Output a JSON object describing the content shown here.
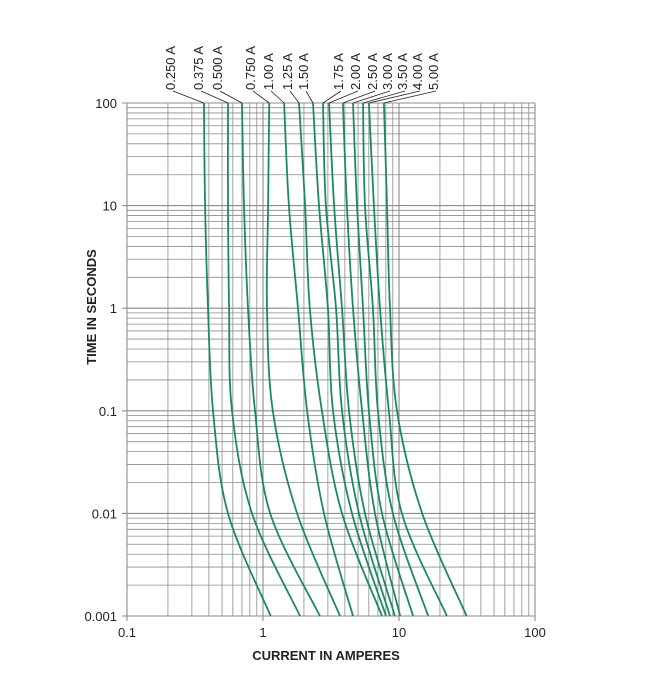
{
  "chart_data": {
    "type": "line",
    "title": "",
    "xlabel": "CURRENT IN AMPERES",
    "ylabel": "TIME IN SECONDS",
    "xscale": "log",
    "yscale": "log",
    "xlim": [
      0.1,
      100
    ],
    "ylim": [
      0.001,
      100
    ],
    "grid": true,
    "xticks": [
      {
        "v": 0.1,
        "label": "0.1"
      },
      {
        "v": 1,
        "label": "1"
      },
      {
        "v": 10,
        "label": "10"
      },
      {
        "v": 100,
        "label": "100"
      }
    ],
    "yticks": [
      {
        "v": 100,
        "label": "100"
      },
      {
        "v": 10,
        "label": "10"
      },
      {
        "v": 1,
        "label": "1"
      },
      {
        "v": 0.1,
        "label": "0.1"
      },
      {
        "v": 0.01,
        "label": "0.01"
      },
      {
        "v": 0.001,
        "label": "0.001"
      }
    ],
    "series_time_points": [
      100,
      10,
      1,
      0.1,
      0.01,
      0.001
    ],
    "series": [
      {
        "name": "0.250 A",
        "current": [
          0.368,
          0.375,
          0.394,
          0.429,
          0.553,
          1.14
        ]
      },
      {
        "name": "0.375 A",
        "current": [
          0.553,
          0.553,
          0.563,
          0.592,
          0.83,
          1.87
        ]
      },
      {
        "name": "0.500 A",
        "current": [
          0.701,
          0.725,
          0.776,
          0.873,
          1.13,
          2.62
        ]
      },
      {
        "name": "0.750 A",
        "current": [
          1.11,
          1.09,
          1.07,
          1.18,
          1.78,
          3.68
        ]
      },
      {
        "name": "1.00 A",
        "current": [
          1.43,
          1.55,
          1.81,
          2.11,
          2.81,
          4.59
        ]
      },
      {
        "name": "1.25 A",
        "current": [
          1.84,
          2.04,
          2.21,
          2.71,
          3.81,
          7.5
        ]
      },
      {
        "name": "1.50 A",
        "current": [
          2.33,
          2.58,
          3.0,
          3.27,
          4.51,
          8.02
        ]
      },
      {
        "name": "1.75 A",
        "current": [
          2.76,
          2.9,
          3.44,
          3.81,
          5.08,
          8.58
        ]
      },
      {
        "name": "2.00 A",
        "current": [
          3.06,
          3.33,
          3.81,
          4.29,
          5.62,
          9.33
        ]
      },
      {
        "name": "2.50 A",
        "current": [
          3.87,
          4.14,
          4.59,
          5.35,
          6.66,
          10.2
        ]
      },
      {
        "name": "3.00 A",
        "current": [
          4.59,
          4.91,
          5.44,
          6.01,
          7.5,
          12.7
        ]
      },
      {
        "name": "3.50 A",
        "current": [
          5.44,
          5.62,
          6.43,
          7.0,
          9.02,
          16.4
        ]
      },
      {
        "name": "4.00 A",
        "current": [
          6.01,
          6.54,
          7.25,
          8.43,
          10.5,
          22.5
        ]
      },
      {
        "name": "5.00 A",
        "current": [
          7.75,
          8.16,
          8.58,
          9.66,
          14.8,
          31.4
        ]
      }
    ],
    "colors": {
      "curve": "#1b8a60",
      "grid": "#8c8c8c",
      "text": "#222222"
    }
  }
}
